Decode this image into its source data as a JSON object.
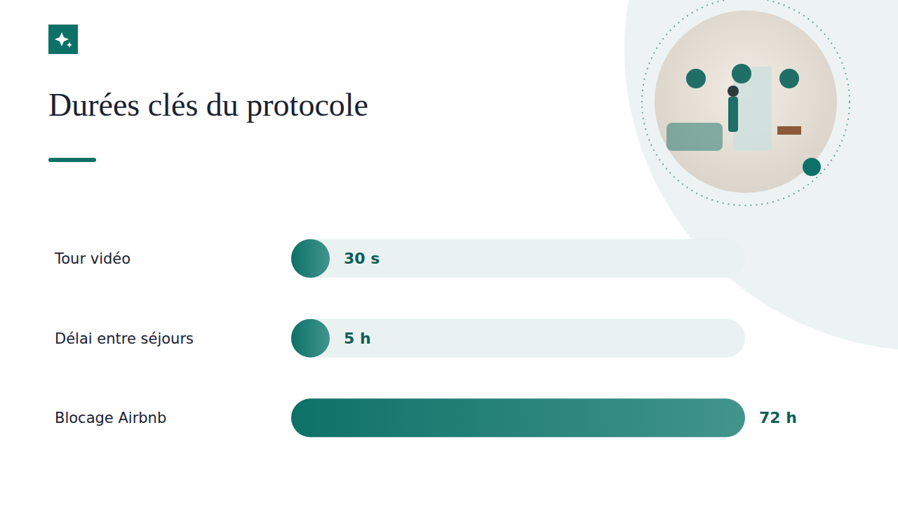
{
  "chart_data": {
    "type": "bar",
    "title": "Durées clés du protocole",
    "orientation": "horizontal",
    "categories": [
      "Tour vidéo",
      "Délai entre séjours",
      "Blocage Airbnb"
    ],
    "values": [
      0.008333,
      5,
      72
    ],
    "value_labels": [
      "30 s",
      "5 h",
      "72 h"
    ],
    "data_labels": true,
    "color": "#127a70",
    "xlim": [
      0,
      72
    ],
    "tick_labels": "y",
    "grid": false
  }
}
